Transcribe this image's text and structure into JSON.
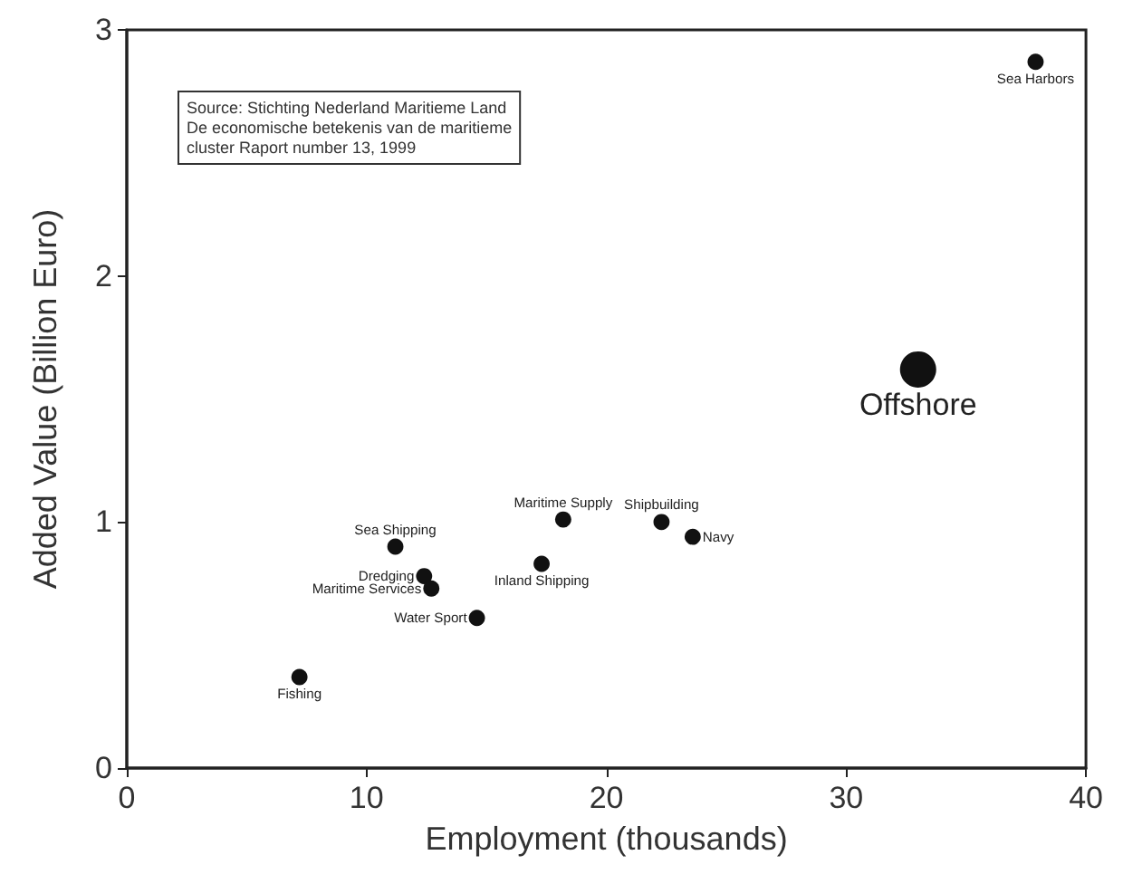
{
  "chart_data": {
    "type": "bubble",
    "xlabel": "Employment (thousands)",
    "ylabel": "Added Value (Billion Euro)",
    "xlim": [
      0,
      40
    ],
    "xticks": [
      0,
      10,
      20,
      30,
      40
    ],
    "ylim": [
      0,
      3
    ],
    "yticks": [
      0,
      1,
      2,
      3
    ],
    "grid": false,
    "legend": false,
    "annotations": [
      "Source: Stichting Nederland Maritieme Land\nDe economische betekenis van de maritieme\ncluster Raport number 13, 1999"
    ],
    "series": [
      {
        "name": "Sea Harbors",
        "color": "#111111",
        "x": [
          37.9
        ],
        "values": [
          2.87
        ],
        "sizes": [
          0.2
        ]
      },
      {
        "name": "Offshore",
        "color": "#111111",
        "x": [
          33.0
        ],
        "values": [
          1.62
        ],
        "sizes": [
          1
        ]
      },
      {
        "name": "Maritime Supply",
        "color": "#111111",
        "x": [
          18.2
        ],
        "values": [
          1.01
        ],
        "sizes": [
          0.2
        ]
      },
      {
        "name": "Shipbuilding",
        "color": "#111111",
        "x": [
          22.3
        ],
        "values": [
          1.0
        ],
        "sizes": [
          0.2
        ]
      },
      {
        "name": "Navy",
        "color": "#111111",
        "x": [
          23.6
        ],
        "values": [
          0.94
        ],
        "sizes": [
          0.2
        ]
      },
      {
        "name": "Sea Shipping",
        "color": "#111111",
        "x": [
          11.2
        ],
        "values": [
          0.9
        ],
        "sizes": [
          0.2
        ]
      },
      {
        "name": "Inland Shipping",
        "color": "#111111",
        "x": [
          17.3
        ],
        "values": [
          0.83
        ],
        "sizes": [
          0.2
        ]
      },
      {
        "name": "Dredging",
        "color": "#111111",
        "x": [
          12.4
        ],
        "values": [
          0.78
        ],
        "sizes": [
          0.2
        ]
      },
      {
        "name": "Maritime Services",
        "color": "#111111",
        "x": [
          12.7
        ],
        "values": [
          0.73
        ],
        "sizes": [
          0.2
        ]
      },
      {
        "name": "Water Sport",
        "color": "#111111",
        "x": [
          14.6
        ],
        "values": [
          0.61
        ],
        "sizes": [
          0.2
        ]
      },
      {
        "name": "Fishing",
        "color": "#111111",
        "x": [
          7.2
        ],
        "values": [
          0.37
        ],
        "sizes": [
          0.2
        ]
      }
    ]
  }
}
